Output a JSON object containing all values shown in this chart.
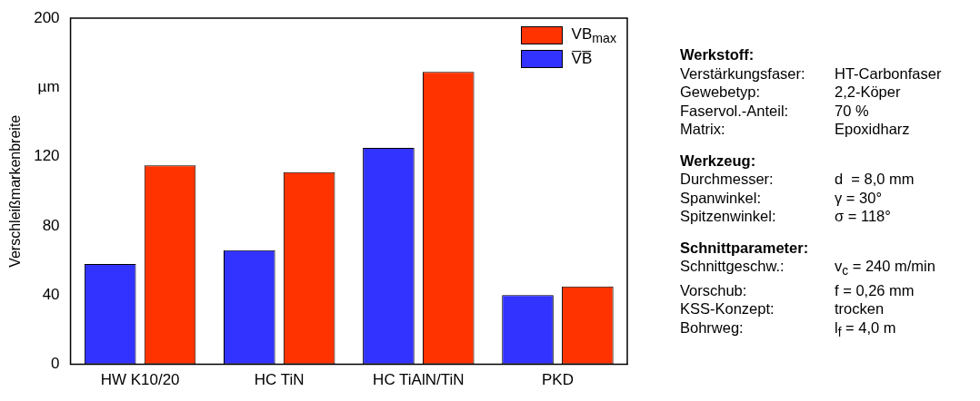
{
  "chart_data": {
    "type": "bar",
    "ylabel": "Verschleißmarkenbreite",
    "categories": [
      "HW K10/20",
      "HC TiN",
      "HC TiAlN/TiN",
      "PKD"
    ],
    "series": [
      {
        "name": "V̅B̅",
        "color": "#3333ff",
        "values": [
          58,
          66,
          125,
          40
        ]
      },
      {
        "name": "VB$_{max}$",
        "color": "#ff3300",
        "values": [
          115,
          111,
          169,
          45
        ]
      }
    ],
    "ylim": [
      0,
      200
    ],
    "yticks": [
      0,
      40,
      80,
      120,
      {
        "value": 160,
        "label": "µm"
      },
      200
    ],
    "grid": false,
    "legend": "top right",
    "annotations": [
      "Werkstoff:",
      "Verstärkungsfaser: HT-Carbonfaser",
      "Gewebetyp: 2,2-Köper",
      "Faservol.-Anteil: 70 %",
      "Matrix: Epoxidharz",
      "Werkzeug:",
      "Durchmesser: d  = 8,0 mm",
      "Spanwinkel: γ = 30°",
      "Spitzenwinkel: σ = 118°",
      "Schnittparameter:",
      "Schnittgeschw.: v$_{c}$ = 240 m/min",
      "Vorschub: f = 0,26 mm",
      "KSS-Konzept: trocken",
      "Bohrweg: l$_{f}$ = 4,0 m"
    ]
  }
}
